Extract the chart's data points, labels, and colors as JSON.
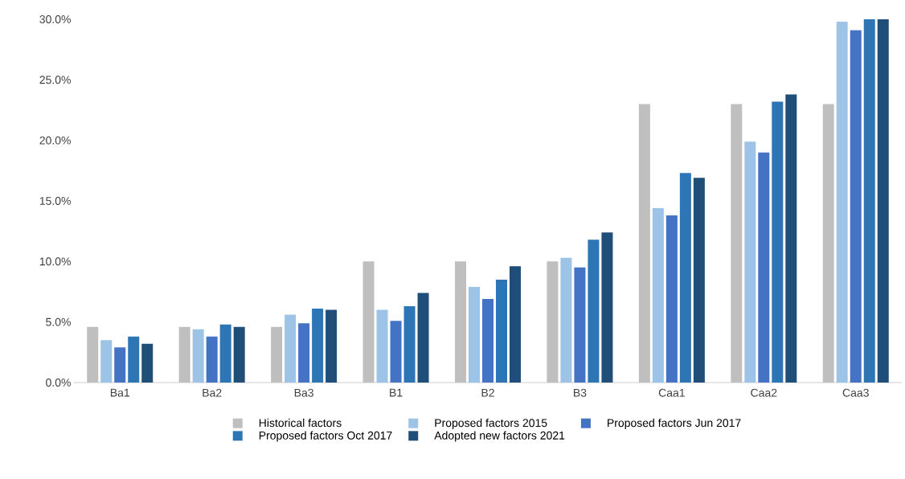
{
  "chart_data": {
    "type": "bar",
    "categories": [
      "Ba1",
      "Ba2",
      "Ba3",
      "B1",
      "B2",
      "B3",
      "Caa1",
      "Caa2",
      "Caa3"
    ],
    "series": [
      {
        "name": "Historical factors",
        "color": "#bfbfbf",
        "values": [
          4.6,
          4.6,
          4.6,
          10,
          10,
          10,
          23,
          23,
          23
        ]
      },
      {
        "name": "Proposed factors 2015",
        "color": "#9dc3e6",
        "values": [
          3.5,
          4.4,
          5.6,
          6,
          7.9,
          10.3,
          14.4,
          19.9,
          29.8
        ]
      },
      {
        "name": "Proposed factors Jun 2017",
        "color": "#4472c4",
        "values": [
          2.9,
          3.8,
          4.9,
          5.1,
          6.9,
          9.5,
          13.8,
          19,
          29.1
        ]
      },
      {
        "name": "Proposed factors Oct 2017",
        "color": "#2e75b6",
        "values": [
          3.8,
          4.8,
          6.1,
          6.3,
          8.5,
          11.8,
          17.3,
          23.2,
          30
        ]
      },
      {
        "name": "Adopted new factors 2021",
        "color": "#1f4e79",
        "values": [
          3.2,
          4.6,
          6.0,
          7.4,
          9.6,
          12.4,
          16.9,
          23.8,
          30
        ]
      }
    ],
    "ylim": [
      0,
      30
    ],
    "yticks": [
      {
        "value": 0,
        "label": "0.0%"
      },
      {
        "value": 5,
        "label": "5.0%"
      },
      {
        "value": 10,
        "label": "10.0%"
      },
      {
        "value": 15,
        "label": "15.0%"
      },
      {
        "value": 20,
        "label": "20.0%"
      },
      {
        "value": 25,
        "label": "25.0%"
      },
      {
        "value": 30,
        "label": "30.0%"
      }
    ],
    "legend": "bottom"
  }
}
